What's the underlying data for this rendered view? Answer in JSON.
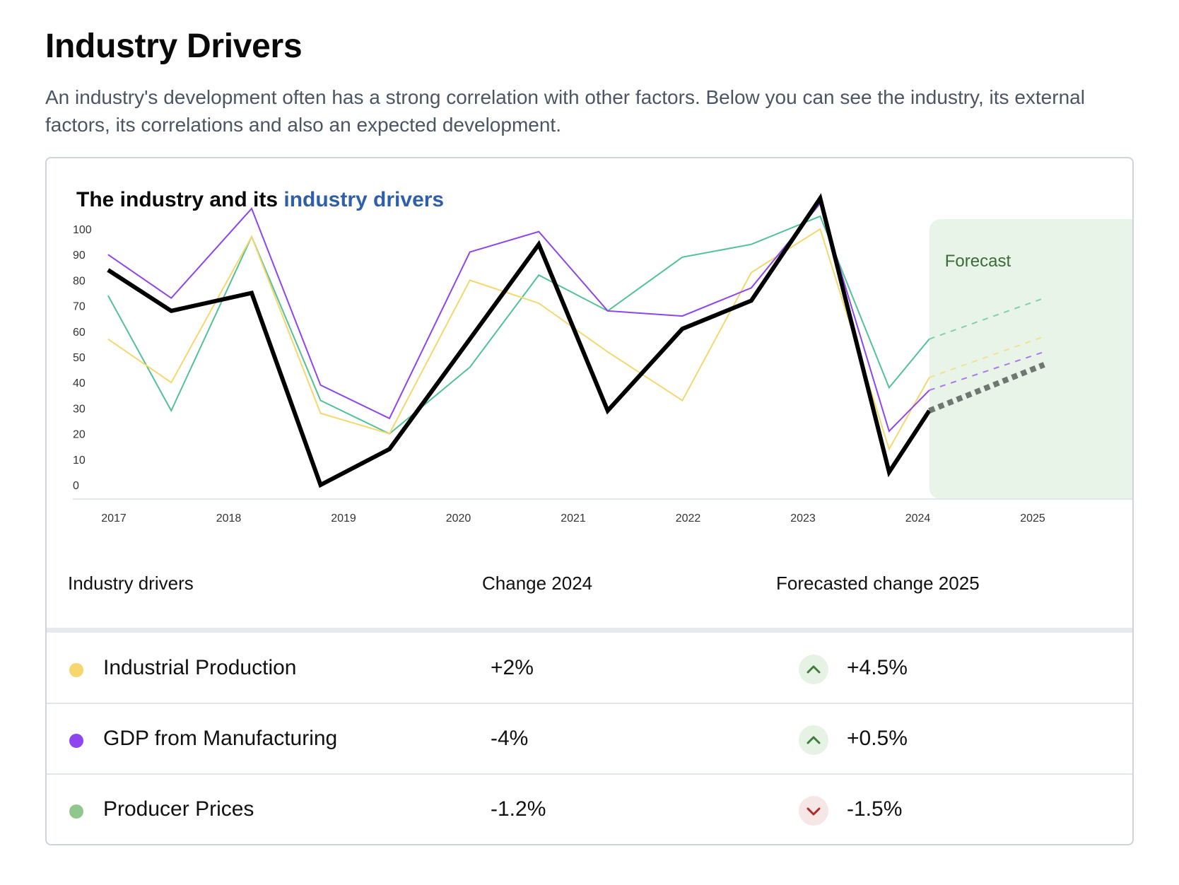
{
  "header": {
    "title": "Industry Drivers",
    "description": "An industry's development often has a strong correlation with other factors. Below you can see the industry, its external factors, its correlations and also an expected development."
  },
  "chart_header": {
    "title_prefix": "The industry and its ",
    "title_accent": "industry drivers"
  },
  "colors": {
    "industry": "#000000",
    "industrial_production": "#f5d76e",
    "gdp_manufacturing": "#8e44ef",
    "producer_prices": "#52c196",
    "forecast_band": "#e9f4e8",
    "forecast_label": "#3b6b34",
    "accent": "#2f5fa8"
  },
  "chart_data": {
    "type": "line",
    "title": "The industry and its industry drivers",
    "xlabel": "",
    "ylabel": "",
    "ylim": [
      0,
      100
    ],
    "y_ticks": [
      0,
      10,
      20,
      30,
      40,
      50,
      60,
      70,
      80,
      90,
      100
    ],
    "x_ticks": [
      "2017",
      "2018",
      "2019",
      "2020",
      "2021",
      "2022",
      "2023",
      "2024",
      "2025"
    ],
    "x_range": [
      2017,
      2025
    ],
    "forecast_start": 2024.1,
    "forecast_label": "Forecast",
    "grid": false,
    "series": [
      {
        "key": "industry",
        "x": [
          2016.95,
          2017.5,
          2018.2,
          2018.8,
          2019.4,
          2020.1,
          2020.7,
          2021.3,
          2021.95,
          2022.55,
          2023.15,
          2023.75,
          2024.1
        ],
        "values": [
          84,
          68,
          75,
          0,
          14,
          57,
          94,
          29,
          61,
          72,
          112,
          5,
          29
        ],
        "forecast_x": [
          2024.1,
          2025.1
        ],
        "forecast_values": [
          29,
          47
        ]
      },
      {
        "key": "industrial_production",
        "x": [
          2016.95,
          2017.5,
          2018.2,
          2018.8,
          2019.4,
          2020.1,
          2020.7,
          2021.3,
          2021.95,
          2022.55,
          2023.15,
          2023.75,
          2024.1
        ],
        "values": [
          57,
          40,
          97,
          28,
          20,
          80,
          71,
          52,
          33,
          83,
          100,
          14,
          42
        ],
        "forecast_x": [
          2024.1,
          2025.1
        ],
        "forecast_values": [
          42,
          58
        ]
      },
      {
        "key": "gdp_manufacturing",
        "x": [
          2016.95,
          2017.5,
          2018.2,
          2018.8,
          2019.4,
          2020.1,
          2020.7,
          2021.3,
          2021.95,
          2022.55,
          2023.15,
          2023.75,
          2024.1
        ],
        "values": [
          90,
          73,
          108,
          39,
          26,
          91,
          99,
          68,
          66,
          77,
          110,
          21,
          37
        ],
        "forecast_x": [
          2024.1,
          2025.1
        ],
        "forecast_values": [
          37,
          52
        ]
      },
      {
        "key": "producer_prices",
        "x": [
          2016.95,
          2017.5,
          2018.2,
          2018.8,
          2019.4,
          2020.1,
          2020.7,
          2021.3,
          2021.95,
          2022.55,
          2023.15,
          2023.75,
          2024.1
        ],
        "values": [
          74,
          29,
          97,
          33,
          20,
          46,
          82,
          68,
          89,
          94,
          105,
          38,
          57
        ],
        "forecast_x": [
          2024.1,
          2025.1
        ],
        "forecast_values": [
          57,
          73
        ]
      }
    ]
  },
  "table": {
    "headers": {
      "drivers": "Industry drivers",
      "change": "Change 2024",
      "forecast": "Forecasted change 2025"
    },
    "rows": [
      {
        "name": "Industrial Production",
        "change": "+2%",
        "forecast": "+4.5%",
        "trend": "up",
        "color": "#f5d76e"
      },
      {
        "name": "GDP from Manufacturing",
        "change": "-4%",
        "forecast": "+0.5%",
        "trend": "up",
        "color": "#8e44ef"
      },
      {
        "name": "Producer Prices",
        "change": "-1.2%",
        "forecast": "-1.5%",
        "trend": "down",
        "color": "#8fc78c"
      }
    ]
  },
  "trend_styles": {
    "up": {
      "bg": "#e6f2e4",
      "stroke": "#3f7d3a",
      "icon": "chevron-up-icon"
    },
    "down": {
      "bg": "#f7e6e6",
      "stroke": "#b22a2a",
      "icon": "chevron-down-icon"
    }
  }
}
